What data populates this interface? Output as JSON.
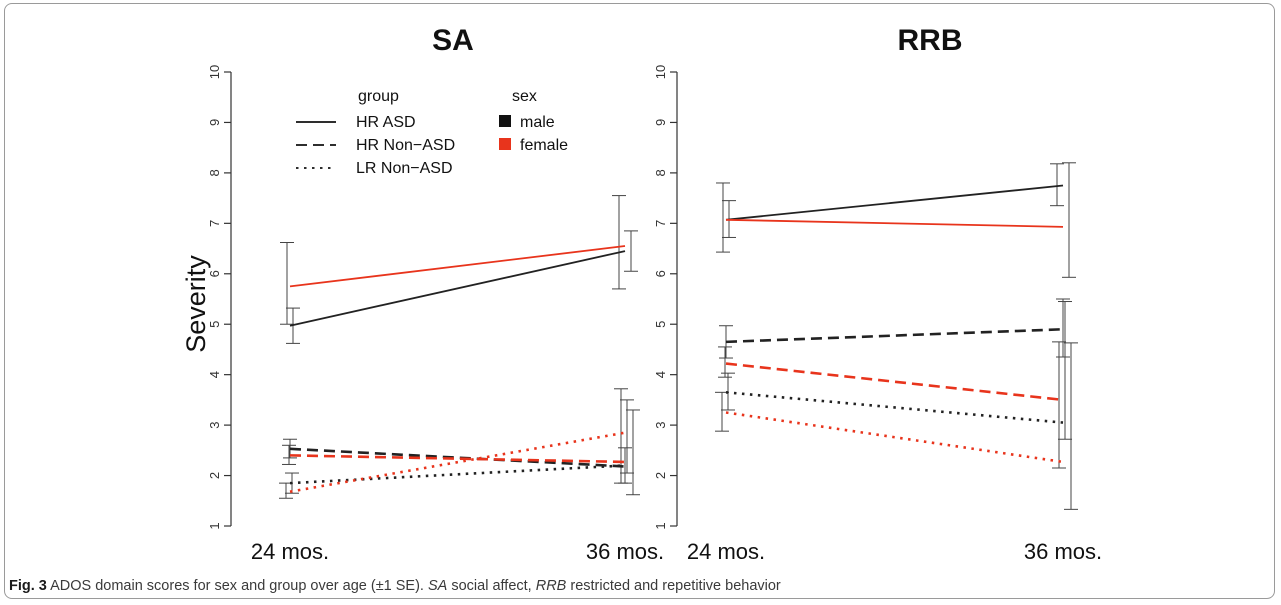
{
  "chart_data": [
    {
      "type": "line",
      "title": "SA",
      "ylabel": "Severity",
      "xlabel": "",
      "categories": [
        "24 mos.",
        "36 mos."
      ],
      "ylim": [
        1,
        10
      ],
      "yticks": [
        "1",
        "2",
        "3",
        "4",
        "5",
        "6",
        "7",
        "8",
        "9",
        "10"
      ],
      "grid": false,
      "series": [
        {
          "group": "HR ASD",
          "sex": "male",
          "values": [
            4.97,
            6.45
          ],
          "se_low": [
            4.62,
            5.7
          ],
          "se_high": [
            5.32,
            7.55
          ],
          "color": "#222222",
          "dash": "solid"
        },
        {
          "group": "HR ASD",
          "sex": "female",
          "values": [
            5.75,
            6.55
          ],
          "se_low": [
            5.0,
            6.05
          ],
          "se_high": [
            6.62,
            6.85
          ],
          "color": "#e8341c",
          "dash": "solid"
        },
        {
          "group": "HR Non-ASD",
          "sex": "male",
          "values": [
            2.53,
            2.18
          ],
          "se_low": [
            2.35,
            1.85
          ],
          "se_high": [
            2.72,
            2.55
          ],
          "color": "#222222",
          "dash": "dashed"
        },
        {
          "group": "HR Non-ASD",
          "sex": "female",
          "values": [
            2.4,
            2.27
          ],
          "se_low": [
            2.22,
            2.05
          ],
          "se_high": [
            2.6,
            3.5
          ],
          "color": "#e8341c",
          "dash": "dashed"
        },
        {
          "group": "LR Non-ASD",
          "sex": "male",
          "values": [
            1.85,
            2.2
          ],
          "se_low": [
            1.65,
            1.85
          ],
          "se_high": [
            2.05,
            3.72
          ],
          "color": "#222222",
          "dash": "dotted"
        },
        {
          "group": "LR Non-ASD",
          "sex": "female",
          "values": [
            1.68,
            2.85
          ],
          "se_low": [
            1.55,
            1.62
          ],
          "se_high": [
            1.85,
            3.3
          ],
          "color": "#e8341c",
          "dash": "dotted"
        }
      ],
      "legend": {
        "placement": "top-left",
        "group_title": "group",
        "sex_title": "sex",
        "group_items": [
          {
            "label": "HR ASD",
            "dash": "solid"
          },
          {
            "label": "HR Non−ASD",
            "dash": "dashed"
          },
          {
            "label": "LR Non−ASD",
            "dash": "dotted"
          }
        ],
        "sex_items": [
          {
            "label": "male",
            "color": "#111111"
          },
          {
            "label": "female",
            "color": "#e8341c"
          }
        ]
      }
    },
    {
      "type": "line",
      "title": "RRB",
      "ylabel": "",
      "xlabel": "",
      "categories": [
        "24 mos.",
        "36 mos."
      ],
      "ylim": [
        1,
        10
      ],
      "yticks": [
        "1",
        "2",
        "3",
        "4",
        "5",
        "6",
        "7",
        "8",
        "9",
        "10"
      ],
      "grid": false,
      "series": [
        {
          "group": "HR ASD",
          "sex": "male",
          "values": [
            7.07,
            7.75
          ],
          "se_low": [
            6.72,
            7.35
          ],
          "se_high": [
            7.45,
            8.18
          ],
          "color": "#222222",
          "dash": "solid"
        },
        {
          "group": "HR ASD",
          "sex": "female",
          "values": [
            7.07,
            6.93
          ],
          "se_low": [
            6.43,
            5.93
          ],
          "se_high": [
            7.8,
            8.2
          ],
          "color": "#e8341c",
          "dash": "solid"
        },
        {
          "group": "HR Non-ASD",
          "sex": "male",
          "values": [
            4.65,
            4.9
          ],
          "se_low": [
            4.33,
            4.35
          ],
          "se_high": [
            4.97,
            5.5
          ],
          "color": "#222222",
          "dash": "dashed"
        },
        {
          "group": "HR Non-ASD",
          "sex": "female",
          "values": [
            4.22,
            3.5
          ],
          "se_low": [
            3.95,
            2.72
          ],
          "se_high": [
            4.55,
            5.45
          ],
          "color": "#e8341c",
          "dash": "dashed"
        },
        {
          "group": "LR Non-ASD",
          "sex": "male",
          "values": [
            3.65,
            3.05
          ],
          "se_low": [
            3.3,
            2.15
          ],
          "se_high": [
            4.03,
            4.65
          ],
          "color": "#222222",
          "dash": "dotted"
        },
        {
          "group": "LR Non-ASD",
          "sex": "female",
          "values": [
            3.25,
            2.27
          ],
          "se_low": [
            2.88,
            1.33
          ],
          "se_high": [
            3.65,
            4.63
          ],
          "color": "#e8341c",
          "dash": "dotted"
        }
      ]
    }
  ],
  "caption": {
    "label": "Fig. 3",
    "text_1": " ADOS domain scores for sex and group over age (±1 SE). ",
    "abbr_1": "SA",
    "text_2": " social affect, ",
    "abbr_2": "RRB",
    "text_3": " restricted and repetitive behavior"
  }
}
